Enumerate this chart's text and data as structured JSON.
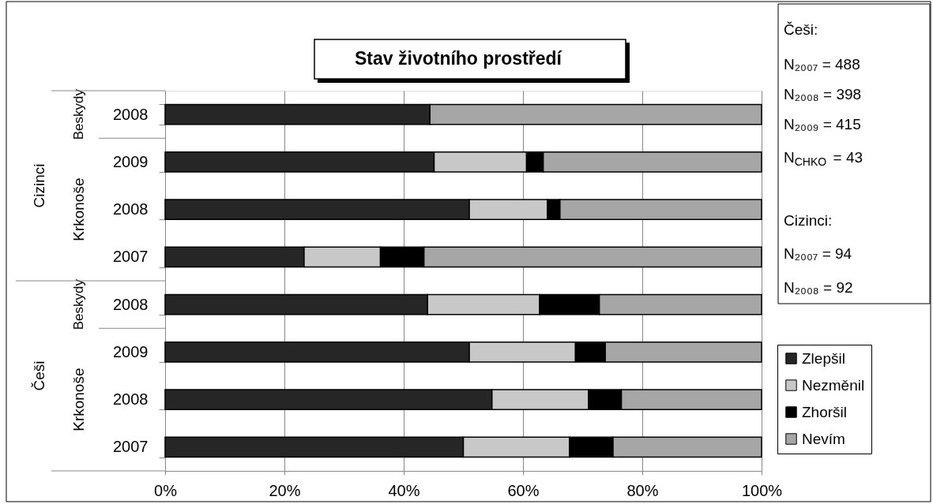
{
  "chart_data": {
    "type": "bar",
    "orientation": "horizontal",
    "stacked": true,
    "title": "Stav životního prostředí",
    "categories": [
      "2008",
      "2009",
      "2008",
      "2007",
      "2008",
      "2009",
      "2008",
      "2007"
    ],
    "series": [
      {
        "name": "Zlepšil",
        "color": "#262626",
        "values": [
          44.4,
          45.1,
          51.0,
          23.3,
          44.0,
          51.0,
          54.8,
          50.0
        ]
      },
      {
        "name": "Nezměnil",
        "color": "#c8c8c8",
        "values": [
          0,
          15.5,
          13.1,
          12.8,
          18.8,
          17.8,
          16.2,
          17.8
        ]
      },
      {
        "name": "Zhoršil",
        "color": "#000000",
        "values": [
          0,
          2.8,
          2.1,
          7.3,
          10.0,
          5.0,
          5.5,
          7.3
        ]
      },
      {
        "name": "Nevím",
        "color": "#a6a6a6",
        "values": [
          55.6,
          36.6,
          33.8,
          56.6,
          27.2,
          26.2,
          23.5,
          24.9
        ]
      }
    ],
    "xlim": [
      0,
      100
    ],
    "xticks": [
      {
        "value": 0,
        "label": "0%"
      },
      {
        "value": 20,
        "label": "20%"
      },
      {
        "value": 40,
        "label": "40%"
      },
      {
        "value": 60,
        "label": "60%"
      },
      {
        "value": 80,
        "label": "80%"
      },
      {
        "value": 100,
        "label": "100%"
      }
    ],
    "grid": "x",
    "legend": "bottom right",
    "annotations": [
      "Cizinci",
      "Beskydy",
      "Krkonoše",
      "Češi",
      "Beskydy",
      "Krkonoše",
      "Češi:",
      "N₂₀₀₇ = 488",
      "N₂₀₀₈ = 398",
      "N₂₀₀₉ = 415",
      "N$_{CHKO}$ = 43",
      "Cizinci:",
      "N₂₀₀₇ = 94",
      "N₂₀₀₈ = 92"
    ]
  }
}
